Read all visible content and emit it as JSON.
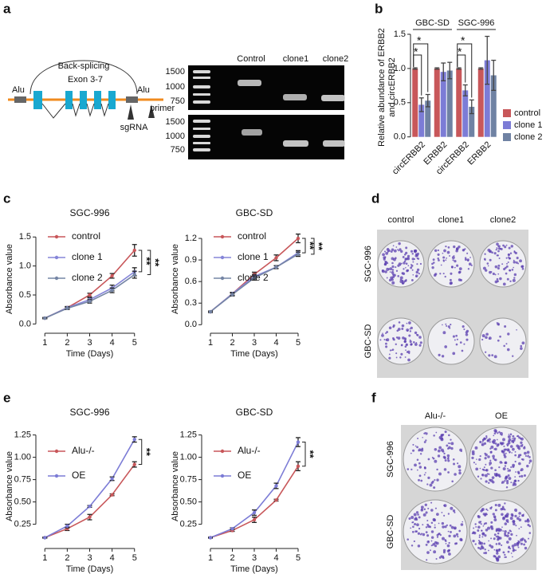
{
  "panel_labels": [
    "a",
    "b",
    "c",
    "d",
    "e",
    "f"
  ],
  "diagram": {
    "title": "Back-splicing",
    "exons": "Exon 3-7",
    "alu_left": "Alu",
    "alu_right": "Alu",
    "primer": "primer",
    "guide": "sgRNA"
  },
  "gel": {
    "lanes": [
      "Control",
      "clone1",
      "clone2"
    ],
    "ladder_top": [
      1500,
      1000,
      750
    ],
    "ladder_bottom": [
      1500,
      1000,
      750
    ]
  },
  "chart_data": [
    {
      "type": "bar",
      "groups": [
        "GBC-SD",
        "SGC-996"
      ],
      "categories": [
        "circERBB2",
        "ERBB2",
        "circERBB2",
        "ERBB2"
      ],
      "ylabel": [
        "Relative abundance of ERBB2",
        "and circERBB2"
      ],
      "series": [
        {
          "name": "control",
          "color": "#c8575a",
          "values": [
            1,
            1,
            1,
            1
          ],
          "errors": [
            0.01,
            0.01,
            0.01,
            0.01
          ]
        },
        {
          "name": "clone 1",
          "color": "#7c7cd6",
          "values": [
            0.47,
            0.95,
            0.68,
            1.12
          ],
          "errors": [
            0.1,
            0.13,
            0.08,
            0.35
          ]
        },
        {
          "name": "clone 2",
          "color": "#6f82a3",
          "values": [
            0.53,
            0.97,
            0.44,
            0.9
          ],
          "errors": [
            0.09,
            0.12,
            0.1,
            0.22
          ]
        }
      ],
      "ylim": [
        -0.05,
        1.5
      ],
      "yticks": [
        {
          "value": 0,
          "label": "0.0"
        },
        0.5,
        {
          "value": 1,
          "label": "1.0"
        },
        1.5
      ],
      "annotations": [
        "*",
        "*",
        "*",
        "*"
      ],
      "legend": "right"
    },
    {
      "type": "line",
      "title": "SGC-996",
      "xlabel": "Time (Days)",
      "ylabel": "Absorbance value",
      "x": [
        1,
        2,
        3,
        4,
        5
      ],
      "xlim": [
        0.6,
        5.4
      ],
      "ylim": [
        -0.05,
        1.6
      ],
      "yticks": [
        {
          "value": 0,
          "label": "0.0"
        },
        0.5,
        {
          "value": 1,
          "label": "1.0"
        },
        1.5
      ],
      "series": [
        {
          "name": "control",
          "color": "#c8575a",
          "values": [
            0.1,
            0.28,
            0.5,
            0.83,
            1.27
          ],
          "errors": [
            0.01,
            0.02,
            0.03,
            0.04,
            0.1
          ]
        },
        {
          "name": "clone 1",
          "color": "#8585d8",
          "values": [
            0.1,
            0.28,
            0.42,
            0.62,
            0.9
          ],
          "errors": [
            0.01,
            0.02,
            0.03,
            0.05,
            0.07
          ]
        },
        {
          "name": "clone 2",
          "color": "#7585a5",
          "values": [
            0.1,
            0.27,
            0.39,
            0.58,
            0.85
          ],
          "errors": [
            0.01,
            0.02,
            0.03,
            0.04,
            0.06
          ]
        }
      ],
      "annotations": [
        "**",
        "**"
      ],
      "legend": "upper left"
    },
    {
      "type": "line",
      "title": "GBC-SD",
      "xlabel": "Time (Days)",
      "ylabel": "Absorbance value",
      "x": [
        1,
        2,
        3,
        4,
        5
      ],
      "xlim": [
        0.6,
        5.4
      ],
      "ylim": [
        -0.03,
        1.3
      ],
      "yticks": [
        {
          "value": 0,
          "label": "0.0"
        },
        0.3,
        0.6,
        0.9,
        1.2
      ],
      "series": [
        {
          "name": "control",
          "color": "#c8575a",
          "values": [
            0.18,
            0.43,
            0.7,
            0.93,
            1.2
          ],
          "errors": [
            0.01,
            0.02,
            0.03,
            0.04,
            0.06
          ]
        },
        {
          "name": "clone 1",
          "color": "#8585d8",
          "values": [
            0.18,
            0.43,
            0.67,
            0.8,
            1.0
          ],
          "errors": [
            0.01,
            0.02,
            0.03,
            0.02,
            0.03
          ]
        },
        {
          "name": "clone 2",
          "color": "#7585a5",
          "values": [
            0.18,
            0.42,
            0.65,
            0.8,
            0.98
          ],
          "errors": [
            0.01,
            0.02,
            0.03,
            0.02,
            0.03
          ]
        }
      ],
      "annotations": [
        "**",
        "**"
      ],
      "legend": "upper left"
    },
    {
      "type": "line",
      "title": "SGC-996",
      "xlabel": "Time (Days)",
      "ylabel": "Absorbance value",
      "x": [
        1,
        2,
        3,
        4,
        5
      ],
      "xlim": [
        0.6,
        5.4
      ],
      "ylim": [
        0.05,
        1.3
      ],
      "yticks": [
        0.25,
        {
          "value": 0.5,
          "label": "0.50"
        },
        0.75,
        {
          "value": 1,
          "label": "1.00"
        },
        1.25
      ],
      "series": [
        {
          "name": "Alu-/-",
          "color": "#c8575a",
          "values": [
            0.1,
            0.2,
            0.33,
            0.58,
            0.92
          ],
          "errors": [
            0.005,
            0.02,
            0.03,
            0.01,
            0.03
          ]
        },
        {
          "name": "OE",
          "color": "#7c7cd6",
          "values": [
            0.1,
            0.23,
            0.45,
            0.76,
            1.2
          ],
          "errors": [
            0.005,
            0.02,
            0.01,
            0.02,
            0.03
          ]
        }
      ],
      "annotations": [
        "**"
      ],
      "legend": "upper left"
    },
    {
      "type": "line",
      "title": "GBC-SD",
      "xlabel": "Time (Days)",
      "ylabel": "Absorbance value",
      "x": [
        1,
        2,
        3,
        4,
        5
      ],
      "xlim": [
        0.6,
        5.4
      ],
      "ylim": [
        0.05,
        1.3
      ],
      "yticks": [
        0.25,
        {
          "value": 0.5,
          "label": "0.50"
        },
        0.75,
        {
          "value": 1,
          "label": "1.00"
        },
        1.25
      ],
      "series": [
        {
          "name": "Alu-/-",
          "color": "#c8575a",
          "values": [
            0.1,
            0.18,
            0.3,
            0.52,
            0.9
          ],
          "errors": [
            0.005,
            0.01,
            0.03,
            0.01,
            0.05
          ]
        },
        {
          "name": "OE",
          "color": "#7c7cd6",
          "values": [
            0.1,
            0.2,
            0.38,
            0.68,
            1.17
          ],
          "errors": [
            0.005,
            0.01,
            0.03,
            0.03,
            0.05
          ]
        }
      ],
      "annotations": [
        "**"
      ],
      "legend": "upper left"
    }
  ],
  "colony_d": {
    "columns": [
      "control",
      "clone1",
      "clone2"
    ],
    "rows": [
      "SGC-996",
      "GBC-SD"
    ]
  },
  "colony_f": {
    "columns": [
      "Alu-/-",
      "OE"
    ],
    "rows": [
      "SGC-996",
      "GBC-SD"
    ]
  }
}
